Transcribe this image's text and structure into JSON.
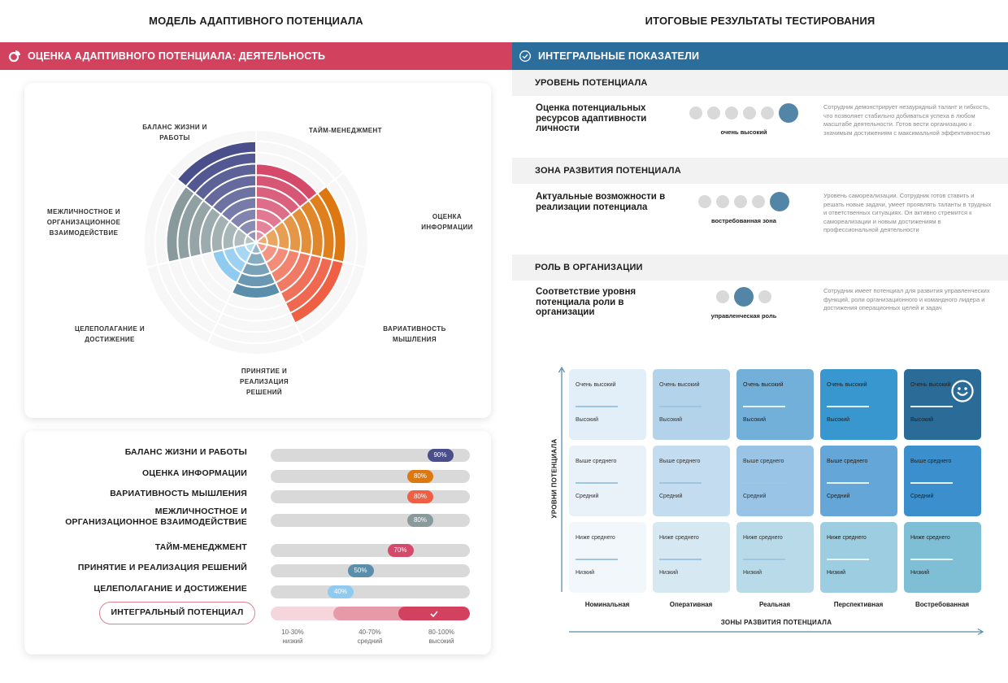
{
  "left": {
    "page_title": "МОДЕЛЬ АДАПТИВНОГО ПОТЕНЦИАЛА",
    "banner_title": "ОЦЕНКА АДАПТИВНОГО ПОТЕНЦИАЛА: ДЕЯТЕЛЬНОСТЬ",
    "banner_icon": "pie-chart-icon",
    "banner_color": "#d2425f"
  },
  "chart_data": {
    "type": "polar-area",
    "max": 100,
    "ring_step": 10,
    "categories": [
      {
        "name": "ТАЙМ-МЕНЕДЖМЕНТ",
        "label_lines": [
          "ТАЙМ-МЕНЕДЖМЕНТ"
        ],
        "value": 70,
        "color": "#d54a6b"
      },
      {
        "name": "ОЦЕНКА ИНФОРМАЦИИ",
        "label_lines": [
          "ОЦЕНКА",
          "ИНФОРМАЦИИ"
        ],
        "value": 80,
        "color": "#dd7810"
      },
      {
        "name": "ВАРИАТИВНОСТЬ МЫШЛЕНИЯ",
        "label_lines": [
          "ВАРИАТИВНОСТЬ",
          "МЫШЛЕНИЯ"
        ],
        "value": 80,
        "color": "#ee5f44"
      },
      {
        "name": "ПРИНЯТИЕ И РЕАЛИЗАЦИЯ РЕШЕНИЙ",
        "label_lines": [
          "ПРИНЯТИЕ И",
          "РЕАЛИЗАЦИЯ",
          "РЕШЕНИЙ"
        ],
        "value": 50,
        "color": "#5b8eaa"
      },
      {
        "name": "ЦЕЛЕПОЛАГАНИЕ И ДОСТИЖЕНИЕ",
        "label_lines": [
          "ЦЕЛЕПОЛАГАНИЕ И",
          "ДОСТИЖЕНИЕ"
        ],
        "value": 40,
        "color": "#8fcbf0"
      },
      {
        "name": "МЕЖЛИЧНОСТНОЕ И ОРГАНИЗАЦИОННОЕ ВЗАИМОДЕЙСТВИЕ",
        "label_lines": [
          "МЕЖЛИЧНОСТНОЕ И",
          "ОРГАНИЗАЦИОННОЕ",
          "ВЗАИМОДЕЙСТВИЕ"
        ],
        "value": 80,
        "color": "#889a9c"
      },
      {
        "name": "БАЛАНС ЖИЗНИ И РАБОТЫ",
        "label_lines": [
          "БАЛАНС ЖИЗНИ И",
          "РАБОТЫ"
        ],
        "value": 90,
        "color": "#4a4f8c"
      }
    ]
  },
  "bars": {
    "items": [
      {
        "label": "БАЛАНС ЖИЗНИ И РАБОТЫ",
        "value": 90,
        "text": "90%",
        "color": "#4a4f8c"
      },
      {
        "label": "ОЦЕНКА ИНФОРМАЦИИ",
        "value": 80,
        "text": "80%",
        "color": "#dd7810"
      },
      {
        "label": "ВАРИАТИВНОСТЬ МЫШЛЕНИЯ",
        "value": 80,
        "text": "80%",
        "color": "#ee5f44"
      },
      {
        "label": "МЕЖЛИЧНОСТНОЕ И\nОРГАНИЗАЦИОННОЕ ВЗАИМОДЕЙСТВИЕ",
        "value": 80,
        "text": "80%",
        "color": "#889a9c"
      },
      {
        "label": "ТАЙМ-МЕНЕДЖМЕНТ",
        "value": 70,
        "text": "70%",
        "color": "#d54a6b"
      },
      {
        "label": "ПРИНЯТИЕ И РЕАЛИЗАЦИЯ РЕШЕНИЙ",
        "value": 50,
        "text": "50%",
        "color": "#5b8eaa"
      },
      {
        "label": "ЦЕЛЕПОЛАГАНИЕ И ДОСТИЖЕНИЕ",
        "value": 40,
        "text": "40%",
        "color": "#8fcbf0"
      }
    ],
    "integral": {
      "label": "ИНТЕГРАЛЬНЫЙ ПОТЕНЦИАЛ",
      "selected_level": "высокий",
      "check_icon": "check-icon",
      "scale": [
        {
          "range": "10-30%",
          "name": "низкий",
          "color": "#f6d6dc"
        },
        {
          "range": "40-70%",
          "name": "средний",
          "color": "#e69aa7"
        },
        {
          "range": "80-100%",
          "name": "высокий",
          "color": "#d2425f"
        }
      ]
    }
  },
  "right": {
    "page_title": "ИТОГОВЫЕ РЕЗУЛЬТАТЫ ТЕСТИРОВАНИЯ",
    "banner_title": "ИНТЕГРАЛЬНЫЕ ПОКАЗАТЕЛИ",
    "banner_icon": "check-circle-icon",
    "banner_color": "#2c6e9b",
    "sections": [
      {
        "header": "УРОВЕНЬ ПОТЕНЦИАЛА",
        "title": "Оценка потенциальных ресурсов адаптивности личности",
        "dots_total": 6,
        "dots_selected": 6,
        "caption": "очень высокий",
        "description": "Сотрудник демонстрирует незаурядный талант и гибкость, что позволяет стабильно добиваться успеха в любом масштабе деятельности. Готов вести организацию к значимым достижениям с максимальной эффективностью"
      },
      {
        "header": "ЗОНА РАЗВИТИЯ ПОТЕНЦИАЛА",
        "title": "Актуальные возможности в реализации потенциала",
        "dots_total": 5,
        "dots_selected": 5,
        "caption": "востребованная зона",
        "description": "Уровень самореализации. Сотрудник готов ставить и решать новые задачи, умеет проявлять таланты в трудных и ответственных ситуациях. Он активно стремится к самореализации и новым достижениям в профессиональной деятельности"
      },
      {
        "header": "РОЛЬ В ОРГАНИЗАЦИИ",
        "title": "Соответствие уровня потенциала роли в организации",
        "dots_total": 3,
        "dots_selected": 2,
        "caption": "управленческая роль",
        "description": "Сотрудник имеет потенциал для развития управленческих функций, роли организационного и командного лидера и достижения операционных целей и задач"
      }
    ],
    "matrix": {
      "y_axis_label": "УРОВНИ ПОТЕНЦИАЛА",
      "x_axis_label": "ЗОНЫ РАЗВИТИЯ ПОТЕНЦИАЛА",
      "columns": [
        "Номинальная",
        "Оперативная",
        "Реальная",
        "Перспективная",
        "Востребованная"
      ],
      "rows": [
        {
          "top": "Очень высокий",
          "bottom": "Высокий",
          "colors": [
            "#e3eff8",
            "#b3d3ea",
            "#72b0da",
            "#3997cf",
            "#2a6b98"
          ]
        },
        {
          "top": "Выше среднего",
          "bottom": "Средний",
          "colors": [
            "#eaf2f9",
            "#c4dcef",
            "#99c4e5",
            "#64a6d8",
            "#3b8fcc"
          ]
        },
        {
          "top": "Ниже среднего",
          "bottom": "Низкий",
          "colors": [
            "#f1f7fb",
            "#d6e9f2",
            "#b9dae8",
            "#9dcde0",
            "#7fbfd6"
          ]
        }
      ],
      "selected": {
        "row": 0,
        "col": 4,
        "icon": "smiley-icon"
      }
    }
  }
}
